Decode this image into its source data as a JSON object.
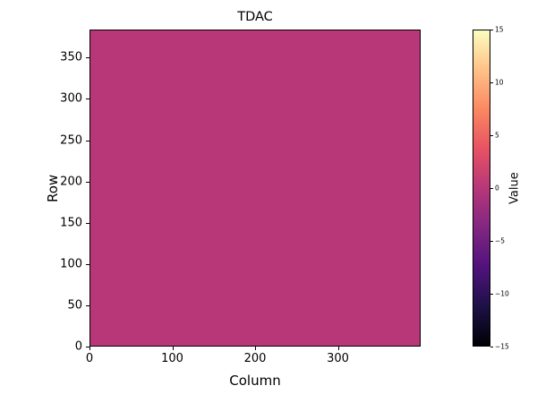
{
  "chart_data": {
    "type": "heatmap",
    "title": "TDAC",
    "xlabel": "Column",
    "ylabel": "Row",
    "x_range": [
      0,
      400
    ],
    "y_range": [
      0,
      384
    ],
    "x_ticks": [
      0,
      100,
      200,
      300
    ],
    "y_ticks": [
      0,
      50,
      100,
      150,
      200,
      250,
      300,
      350
    ],
    "uniform_value": 0,
    "fill_color": "#b73779",
    "grid": false,
    "legend": false,
    "colorbar": {
      "label": "Value",
      "position": "right",
      "range": [
        -15,
        15
      ],
      "ticks": [
        15,
        10,
        5,
        0,
        -5,
        -10,
        -15
      ],
      "tick_labels": [
        "15",
        "10",
        "5",
        "0",
        "−5",
        "−10",
        "−15"
      ],
      "colormap": "magma",
      "gradient_stops": [
        {
          "pos": 0.0,
          "color": "#000004"
        },
        {
          "pos": 0.125,
          "color": "#1d1147"
        },
        {
          "pos": 0.25,
          "color": "#51127c"
        },
        {
          "pos": 0.375,
          "color": "#822681"
        },
        {
          "pos": 0.5,
          "color": "#b73779"
        },
        {
          "pos": 0.625,
          "color": "#e75263"
        },
        {
          "pos": 0.75,
          "color": "#fb8861"
        },
        {
          "pos": 0.875,
          "color": "#fec287"
        },
        {
          "pos": 1.0,
          "color": "#fcfdbf"
        }
      ]
    }
  }
}
